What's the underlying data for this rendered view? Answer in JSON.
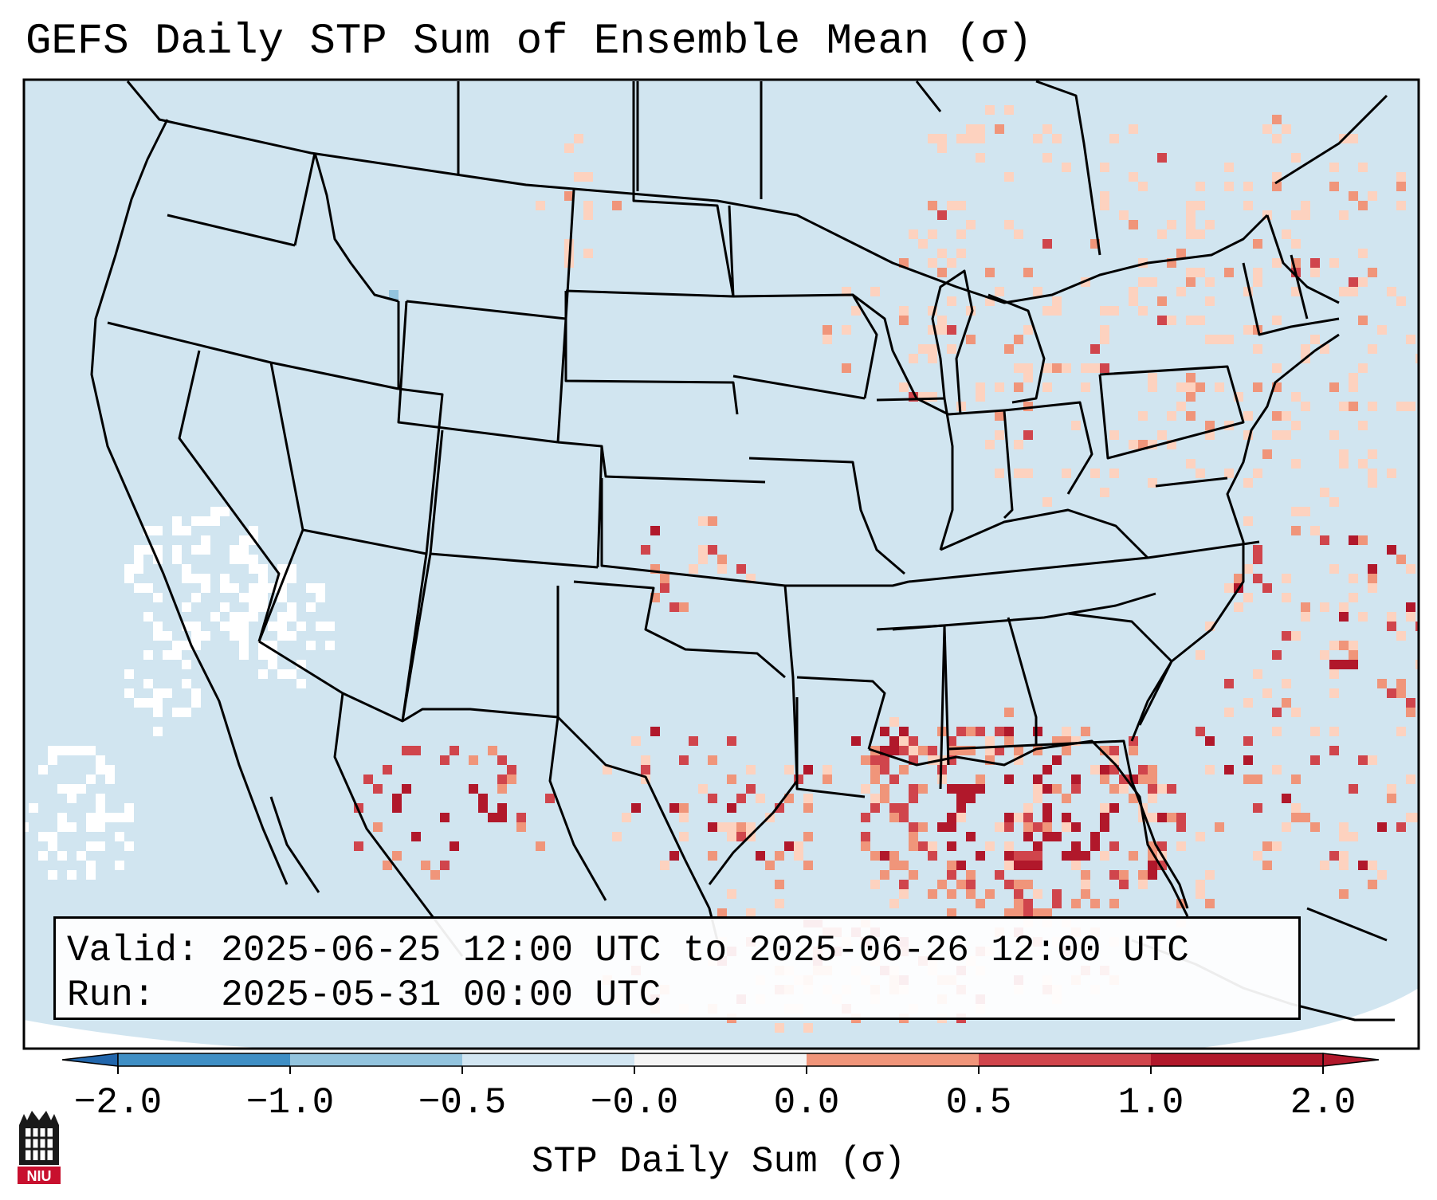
{
  "title": "GEFS Daily STP Sum of Ensemble Mean (σ)",
  "info": {
    "valid_label": "Valid:",
    "valid_value": "2025-06-25 12:00 UTC to 2025-06-26 12:00 UTC",
    "run_label": "Run:",
    "run_value": "2025-05-31 00:00 UTC"
  },
  "colorbar": {
    "label": "STP Daily Sum (σ)",
    "ticks": [
      "−2.0",
      "−1.0",
      "−0.5",
      "−0.0",
      "0.0",
      "0.5",
      "1.0",
      "2.0"
    ],
    "colors": [
      "#3f8fc5",
      "#93c4de",
      "#d2e6f2",
      "#f5f5f5",
      "#fdd2bf",
      "#f0957a",
      "#d0454c",
      "#b1182b"
    ],
    "extend_low": "#2166ac",
    "extend_high": "#b1182b"
  },
  "map": {
    "background": "#d1e5f0",
    "missing": "#ffffff",
    "border": "#000000"
  },
  "logo": {
    "text": "NIU",
    "color": "#c8102e"
  }
}
